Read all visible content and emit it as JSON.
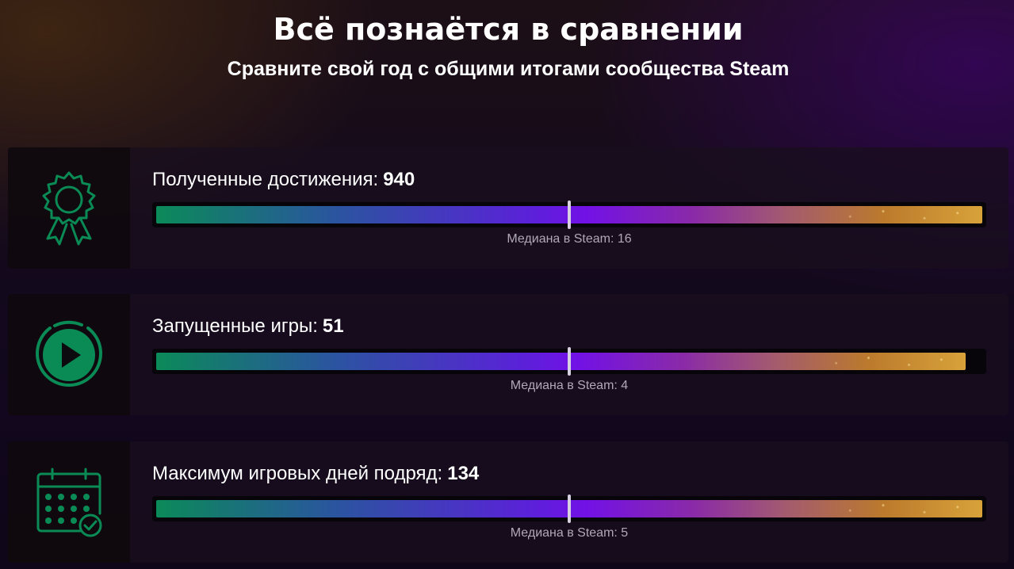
{
  "header": {
    "title": "Всё познаётся в сравнении",
    "subtitle": "Сравните свой год с общими итогами сообщества Steam"
  },
  "stats": [
    {
      "label": "Полученные достижения:",
      "value": "940",
      "median_label": "Медиана в Steam: 16",
      "bar_fill_fraction": 1.0,
      "median_fraction": 0.5,
      "icon": "achievement-badge-icon"
    },
    {
      "label": "Запущенные игры:",
      "value": "51",
      "median_label": "Медиана в Steam: 4",
      "bar_fill_fraction": 0.98,
      "median_fraction": 0.5,
      "icon": "play-circle-icon"
    },
    {
      "label": "Максимум игровых дней подряд:",
      "value": "134",
      "median_label": "Медиана в Steam: 5",
      "bar_fill_fraction": 1.0,
      "median_fraction": 0.5,
      "icon": "calendar-check-icon"
    }
  ],
  "colors": {
    "icon_green": "#0a8a55",
    "median_marker": "#d6d0e0",
    "median_text": "#b0a8b8"
  }
}
